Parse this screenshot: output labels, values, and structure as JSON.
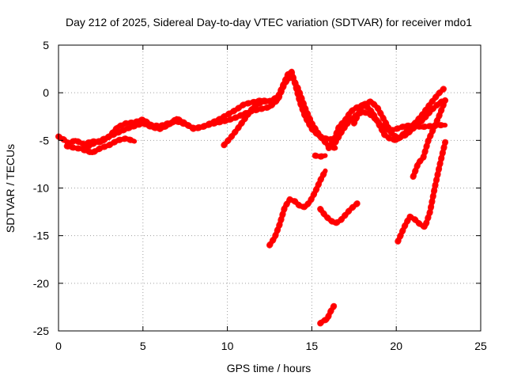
{
  "chart_data": {
    "type": "line",
    "title": "Day 212 of 2025, Sidereal Day-to-day VTEC variation (SDTVAR) for receiver mdo1",
    "xlabel": "GPS time / hours",
    "ylabel": "SDTVAR / TECUs",
    "xlim": [
      0,
      25
    ],
    "ylim": [
      -25,
      5
    ],
    "xticks": [
      0,
      5,
      10,
      15,
      20,
      25
    ],
    "yticks": [
      5,
      0,
      -5,
      -10,
      -15,
      -20,
      -25
    ],
    "xtick_labels": [
      "0",
      "5",
      "10",
      "15",
      "20",
      "25"
    ],
    "ytick_labels": [
      "5",
      "0",
      "-5",
      "-10",
      "-15",
      "-20",
      "-25"
    ],
    "grid": true,
    "legend": "none",
    "series_color": "#ff0000",
    "series": [
      {
        "x": [
          0.0,
          0.3,
          0.6,
          1.0,
          1.5,
          2.0,
          2.5,
          3.0,
          3.5,
          4.0,
          4.5,
          5.0,
          5.5,
          6.0,
          6.5,
          7.0,
          7.5,
          8.0,
          8.5,
          9.0,
          9.5,
          10.0,
          10.5,
          11.0,
          11.5,
          12.0,
          12.5,
          13.0,
          13.3,
          13.6,
          13.8,
          14.0,
          14.3,
          14.6,
          15.0,
          15.4,
          15.8,
          16.2,
          16.5
        ],
        "values": [
          -4.6,
          -4.9,
          -5.3,
          -5.0,
          -5.4,
          -5.1,
          -5.2,
          -4.6,
          -3.6,
          -3.2,
          -3.1,
          -2.8,
          -3.4,
          -3.5,
          -3.2,
          -3.0,
          -3.3,
          -3.7,
          -3.6,
          -3.2,
          -2.8,
          -2.3,
          -1.8,
          -1.2,
          -1.0,
          -0.8,
          -0.9,
          -0.4,
          0.8,
          2.0,
          2.2,
          1.0,
          -1.0,
          -2.5,
          -3.8,
          -4.5,
          -4.8,
          -4.9,
          -4.7
        ]
      },
      {
        "x": [
          0.5,
          1.0,
          1.5,
          2.0,
          2.5,
          3.0,
          3.5,
          4.0,
          4.5,
          5.0,
          5.5,
          6.0,
          6.5,
          7.0,
          7.5,
          8.0,
          8.5,
          9.0,
          9.5,
          10.0,
          10.5,
          11.0,
          11.5,
          12.0,
          12.5,
          13.0,
          13.4,
          13.8,
          14.2,
          14.6,
          15.0,
          15.5,
          16.0,
          16.4
        ],
        "values": [
          -5.6,
          -5.8,
          -5.9,
          -5.4,
          -5.0,
          -4.6,
          -4.2,
          -3.8,
          -3.5,
          -3.2,
          -3.6,
          -3.8,
          -3.4,
          -2.7,
          -3.2,
          -3.8,
          -3.6,
          -3.3,
          -3.1,
          -2.9,
          -2.6,
          -2.2,
          -1.9,
          -1.7,
          -1.5,
          -0.7,
          1.0,
          1.8,
          0.4,
          -1.6,
          -3.2,
          -4.6,
          -5.6,
          -5.8
        ]
      },
      {
        "x": [
          1.5,
          2.0,
          2.5,
          3.0,
          3.5,
          4.0,
          4.5
        ],
        "values": [
          -6.0,
          -6.3,
          -5.8,
          -5.5,
          -5.0,
          -4.8,
          -5.1
        ]
      },
      {
        "x": [
          9.8,
          10.2,
          10.6,
          11.0,
          11.5,
          12.0,
          12.5
        ],
        "values": [
          -5.5,
          -4.7,
          -3.8,
          -2.8,
          -1.6,
          -1.0,
          -0.8
        ]
      },
      {
        "x": [
          16.0,
          16.3,
          16.6,
          17.0,
          17.3,
          17.6,
          18.0,
          18.3,
          18.6,
          19.0,
          19.3,
          19.6,
          20.0,
          20.5,
          21.0,
          21.5,
          22.0,
          22.5,
          22.8
        ],
        "values": [
          -5.8,
          -5.0,
          -3.6,
          -2.8,
          -2.0,
          -1.6,
          -1.3,
          -1.5,
          -2.1,
          -3.4,
          -4.4,
          -4.8,
          -5.0,
          -4.2,
          -3.4,
          -2.4,
          -1.2,
          -0.1,
          0.4
        ]
      },
      {
        "x": [
          16.4,
          16.8,
          17.2,
          17.6,
          18.0,
          18.4,
          18.8,
          19.2,
          19.6,
          20.0,
          20.5,
          21.0,
          21.5,
          22.0,
          22.5,
          22.9
        ],
        "values": [
          -5.2,
          -4.0,
          -3.0,
          -2.4,
          -2.0,
          -2.2,
          -2.8,
          -3.6,
          -4.0,
          -3.8,
          -3.5,
          -3.4,
          -3.6,
          -3.5,
          -3.4,
          -3.4
        ]
      },
      {
        "x": [
          17.5,
          18.0,
          18.5,
          18.9,
          19.3,
          19.7,
          20.1,
          20.6,
          21.1,
          21.6,
          22.1,
          22.6,
          22.9
        ],
        "values": [
          -3.2,
          -1.3,
          -0.9,
          -1.6,
          -2.9,
          -4.2,
          -4.8,
          -4.4,
          -3.6,
          -2.8,
          -1.8,
          -1.0,
          -0.8
        ]
      },
      {
        "x": [
          15.2,
          15.5,
          15.8
        ],
        "values": [
          -6.6,
          -6.7,
          -6.6
        ]
      },
      {
        "x": [
          12.5,
          12.8,
          13.1,
          13.4,
          13.7,
          14.0,
          14.3,
          14.6,
          14.9,
          15.2,
          15.5,
          15.8
        ],
        "values": [
          -16.0,
          -15.2,
          -13.8,
          -12.0,
          -11.2,
          -11.4,
          -11.9,
          -12.0,
          -11.4,
          -10.4,
          -9.2,
          -8.2
        ]
      },
      {
        "x": [
          15.5,
          15.8,
          16.1,
          16.4,
          16.7,
          17.0,
          17.3,
          17.7
        ],
        "values": [
          -12.2,
          -12.9,
          -13.4,
          -13.7,
          -13.4,
          -12.8,
          -12.2,
          -11.6
        ]
      },
      {
        "x": [
          15.5,
          15.7,
          15.9,
          16.1,
          16.3
        ],
        "values": [
          -24.2,
          -23.9,
          -23.8,
          -23.0,
          -22.4
        ]
      },
      {
        "x": [
          20.1,
          20.5,
          20.8,
          21.1,
          21.4,
          21.7,
          22.0,
          22.3,
          22.6,
          22.9
        ],
        "values": [
          -15.6,
          -14.0,
          -13.0,
          -13.3,
          -13.8,
          -14.1,
          -12.5,
          -9.8,
          -7.4,
          -5.2
        ]
      },
      {
        "x": [
          21.0,
          21.3,
          21.6,
          21.9,
          22.2,
          22.5,
          22.9
        ],
        "values": [
          -8.8,
          -7.4,
          -6.8,
          -5.0,
          -3.8,
          -2.6,
          -0.8
        ]
      }
    ]
  }
}
